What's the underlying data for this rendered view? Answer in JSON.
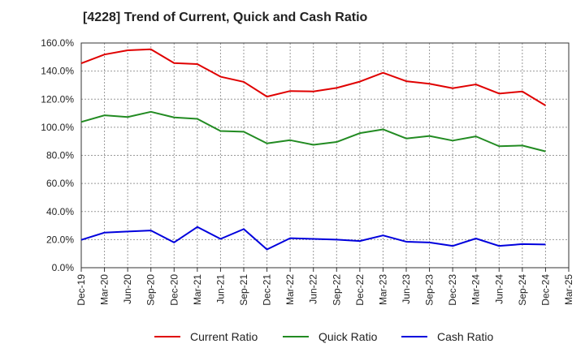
{
  "chart_data": {
    "type": "line",
    "title": "[4228]  Trend of Current, Quick and Cash Ratio",
    "xlabel": "",
    "ylabel": "",
    "ylim": [
      0,
      160
    ],
    "grid": true,
    "legend": "bottom",
    "x_ticks": [
      "Dec-19",
      "Mar-20",
      "Jun-20",
      "Sep-20",
      "Dec-20",
      "Mar-21",
      "Jun-21",
      "Sep-21",
      "Dec-21",
      "Mar-22",
      "Jun-22",
      "Sep-22",
      "Dec-22",
      "Mar-23",
      "Jun-23",
      "Sep-23",
      "Dec-23",
      "Mar-24",
      "Jun-24",
      "Sep-24",
      "Dec-24",
      "Mar-25"
    ],
    "y_ticks": [
      "0.0%",
      "20.0%",
      "40.0%",
      "60.0%",
      "80.0%",
      "100.0%",
      "120.0%",
      "140.0%",
      "160.0%"
    ],
    "categories": [
      "Dec-19",
      "Mar-20",
      "Jun-20",
      "Sep-20",
      "Dec-20",
      "Mar-21",
      "Jun-21",
      "Sep-21",
      "Dec-21",
      "Mar-22",
      "Jun-22",
      "Sep-22",
      "Dec-22",
      "Mar-23",
      "Jun-23",
      "Sep-23",
      "Dec-23",
      "Mar-24",
      "Jun-24",
      "Sep-24",
      "Dec-24"
    ],
    "series": [
      {
        "name": "Current Ratio",
        "color": "#e00000",
        "values": [
          145.5,
          151.8,
          154.8,
          155.5,
          145.7,
          145.0,
          136.0,
          132.3,
          121.8,
          125.8,
          125.5,
          128.0,
          132.5,
          138.8,
          132.8,
          131.0,
          127.8,
          130.5,
          124.0,
          125.5,
          115.5
        ]
      },
      {
        "name": "Quick Ratio",
        "color": "#228b22",
        "values": [
          103.8,
          108.5,
          107.3,
          111.0,
          107.0,
          106.0,
          97.3,
          96.8,
          88.5,
          90.8,
          87.5,
          89.5,
          95.8,
          98.5,
          92.0,
          93.8,
          90.5,
          93.5,
          86.5,
          87.0,
          82.8
        ]
      },
      {
        "name": "Cash Ratio",
        "color": "#0000dd",
        "values": [
          19.8,
          25.0,
          25.8,
          26.5,
          18.0,
          29.0,
          20.5,
          27.5,
          13.0,
          21.0,
          20.5,
          20.0,
          19.0,
          23.0,
          18.5,
          18.0,
          15.5,
          20.8,
          15.5,
          16.8,
          16.5
        ]
      }
    ]
  }
}
